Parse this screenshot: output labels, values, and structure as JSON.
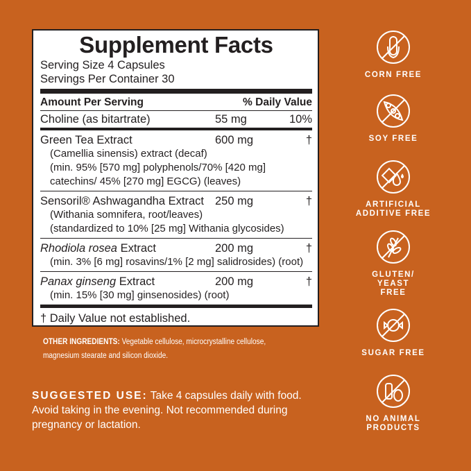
{
  "facts": {
    "title": "Supplement Facts",
    "serving_size": "Serving Size 4 Capsules",
    "servings_per_container": "Servings Per Container 30",
    "header_amount": "Amount Per Serving",
    "header_dv": "% Daily Value",
    "ingredients": [
      {
        "name": "Choline (as bitartrate)",
        "amount": "55 mg",
        "dv": "10%",
        "details": []
      },
      {
        "name": "Green Tea Extract",
        "amount": "600 mg",
        "dv": "†",
        "details": [
          "(Camellia sinensis) extract (decaf)",
          "(min. 95% [570 mg] polyphenols/70% [420 mg]",
          "catechins/ 45% [270 mg] EGCG) (leaves)"
        ]
      },
      {
        "name": "Sensoril® Ashwagandha Extract",
        "amount": "250 mg",
        "dv": "†",
        "details": [
          "(Withania somnifera, root/leaves)",
          "(standardized to 10% [25 mg] Withania glycosides)"
        ]
      },
      {
        "name_italic": "Rhodiola rosea",
        "name": " Extract",
        "amount": "200 mg",
        "dv": "†",
        "details": [
          "(min. 3% [6 mg] rosavins/1% [2 mg] salidrosides) (root)"
        ]
      },
      {
        "name_italic": "Panax ginseng",
        "name": " Extract",
        "amount": "200 mg",
        "dv": "†",
        "details": [
          "(min. 15% [30 mg] ginsenosides) (root)"
        ]
      }
    ],
    "footnote": "† Daily Value not established."
  },
  "other_ingredients": {
    "label": "OTHER INGREDIENTS:",
    "text": " Vegetable cellulose, microcrystalline cellulose, magnesium stearate and silicon dioxide."
  },
  "suggested_use": {
    "label": "SUGGESTED USE:",
    "text": " Take 4 capsules daily with food. Avoid taking in the evening. Not recommended during pregnancy or lactation."
  },
  "badges": [
    {
      "icon": "corn-free-icon",
      "label": "CORN FREE"
    },
    {
      "icon": "soy-free-icon",
      "label": "SOY FREE"
    },
    {
      "icon": "artificial-additive-free-icon",
      "label": "ARTIFICIAL ADDITIVE FREE"
    },
    {
      "icon": "gluten-yeast-free-icon",
      "label": "GLUTEN/ YEAST FREE"
    },
    {
      "icon": "sugar-free-icon",
      "label": "SUGAR FREE"
    },
    {
      "icon": "no-animal-products-icon",
      "label": "NO ANIMAL PRODUCTS"
    }
  ],
  "colors": {
    "background": "#c8621f",
    "panel": "#ffffff",
    "text": "#231f20"
  }
}
